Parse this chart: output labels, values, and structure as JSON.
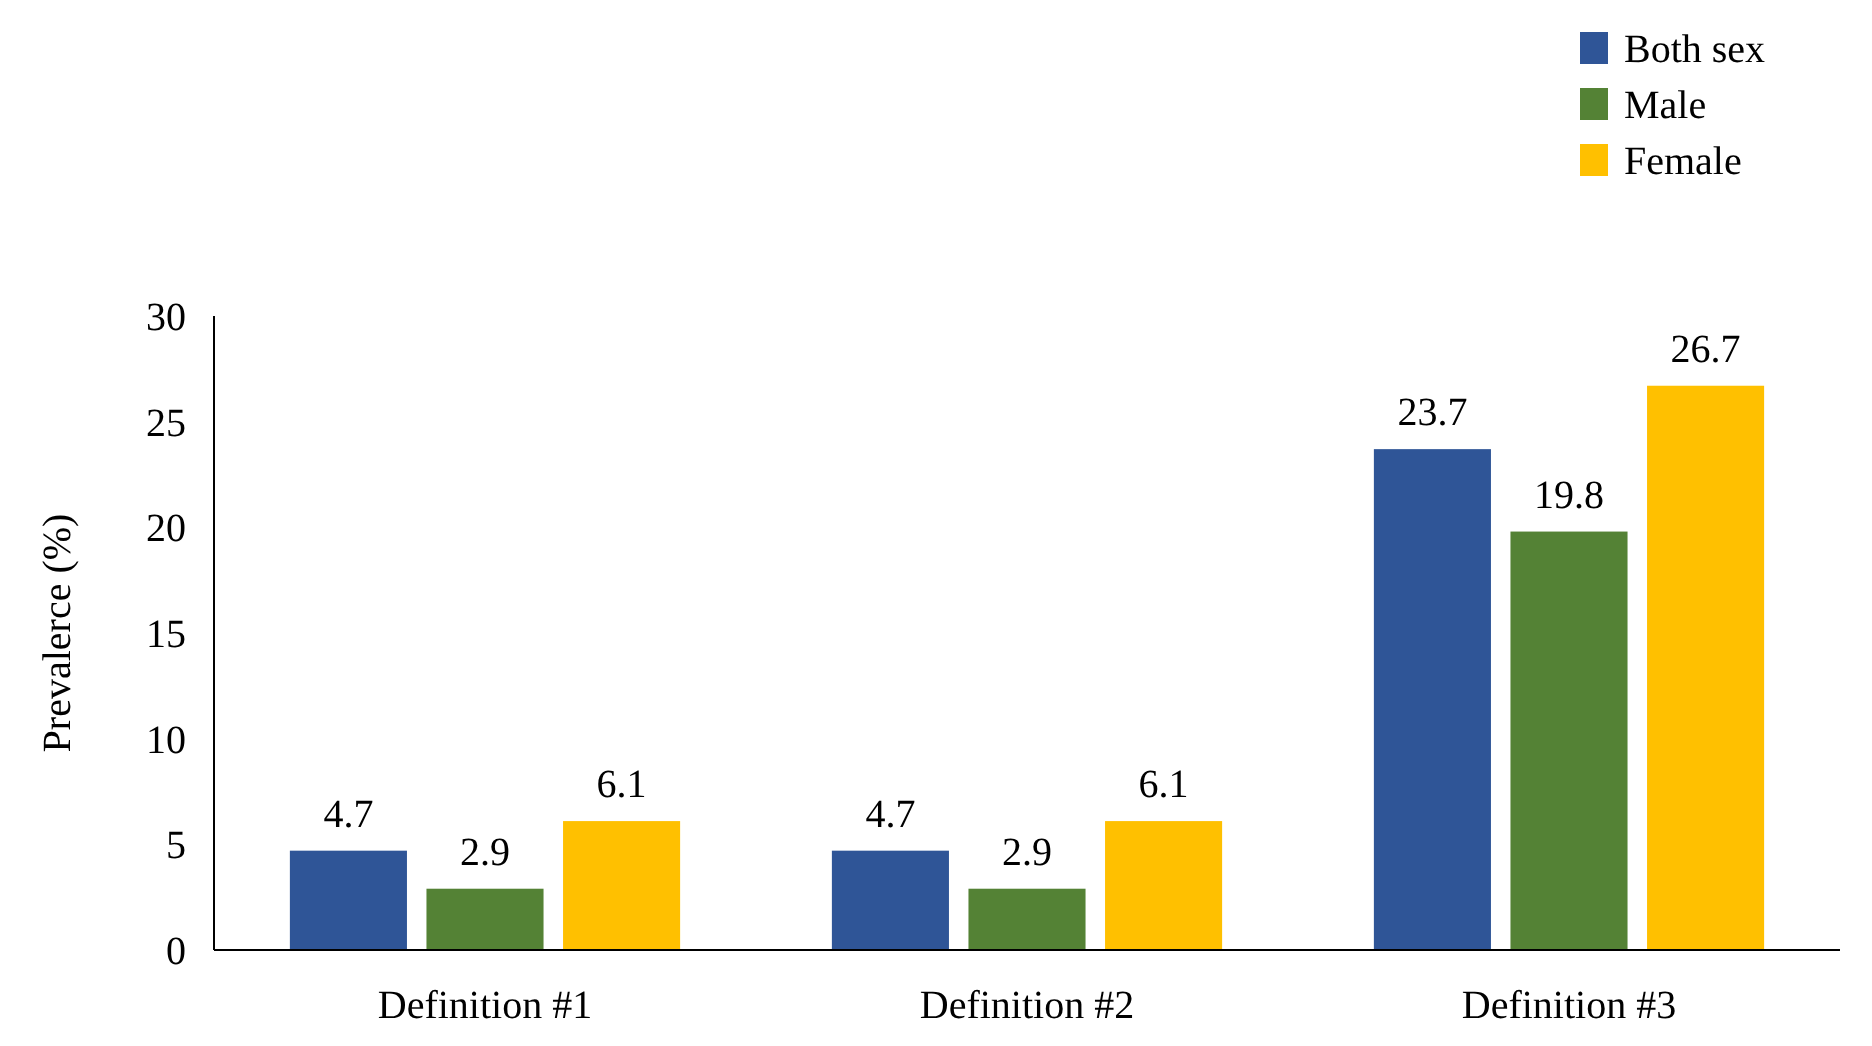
{
  "chart_data": {
    "type": "bar",
    "ylabel": "Prevalerce (%)",
    "categories": [
      "Definition #1",
      "Definition #2",
      "Definition #3"
    ],
    "series": [
      {
        "name": "Both sex",
        "color": "#2f5597",
        "values": [
          4.7,
          4.7,
          23.7
        ]
      },
      {
        "name": "Male",
        "color": "#548235",
        "values": [
          2.9,
          2.9,
          19.8
        ]
      },
      {
        "name": "Female",
        "color": "#ffc000",
        "values": [
          6.1,
          6.1,
          26.7
        ]
      }
    ],
    "ylim": [
      0,
      30
    ],
    "yticks": [
      0,
      5,
      10,
      15,
      20,
      25,
      30
    ],
    "data_labels": true,
    "legend": "top right",
    "grid": false
  }
}
